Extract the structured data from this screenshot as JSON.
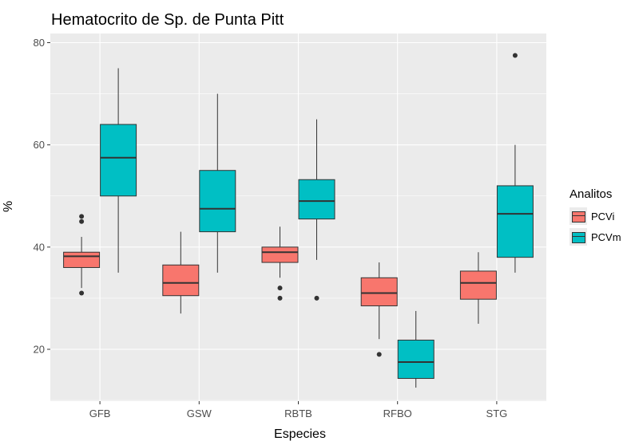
{
  "chart_data": {
    "type": "boxplot",
    "title": "Hematocrito de Sp. de Punta Pitt",
    "xlabel": "Especies",
    "ylabel": "%",
    "ylim": [
      10,
      80
    ],
    "yticks": [
      20,
      40,
      60,
      80
    ],
    "grid": true,
    "legend": {
      "title": "Analitos",
      "position": "right"
    },
    "categories": [
      "GFB",
      "GSW",
      "RBTB",
      "RFBO",
      "STG"
    ],
    "series": [
      {
        "name": "PCVi",
        "color": "#F8766D",
        "boxes": [
          {
            "whisker_low": 32,
            "q1": 36,
            "median": 38.2,
            "q3": 39,
            "whisker_high": 42,
            "outliers": [
              31,
              45,
              46
            ]
          },
          {
            "whisker_low": 27,
            "q1": 30.5,
            "median": 33,
            "q3": 36.5,
            "whisker_high": 43,
            "outliers": []
          },
          {
            "whisker_low": 34,
            "q1": 37,
            "median": 39,
            "q3": 40,
            "whisker_high": 44,
            "outliers": [
              30,
              32
            ]
          },
          {
            "whisker_low": 22,
            "q1": 28.5,
            "median": 31,
            "q3": 34,
            "whisker_high": 37,
            "outliers": [
              19
            ]
          },
          {
            "whisker_low": 25,
            "q1": 29.8,
            "median": 33,
            "q3": 35.3,
            "whisker_high": 39,
            "outliers": []
          }
        ]
      },
      {
        "name": "PCVm",
        "color": "#00BFC4",
        "boxes": [
          {
            "whisker_low": 35,
            "q1": 50,
            "median": 57.5,
            "q3": 64,
            "whisker_high": 75,
            "outliers": []
          },
          {
            "whisker_low": 35,
            "q1": 43,
            "median": 47.5,
            "q3": 55,
            "whisker_high": 70,
            "outliers": []
          },
          {
            "whisker_low": 37.5,
            "q1": 45.5,
            "median": 49,
            "q3": 53.2,
            "whisker_high": 65,
            "outliers": [
              30
            ]
          },
          {
            "whisker_low": 12.5,
            "q1": 14.3,
            "median": 17.5,
            "q3": 21.8,
            "whisker_high": 27.5,
            "outliers": []
          },
          {
            "whisker_low": 35,
            "q1": 38,
            "median": 46.5,
            "q3": 52,
            "whisker_high": 60,
            "outliers": [
              77.5
            ]
          }
        ]
      }
    ]
  }
}
